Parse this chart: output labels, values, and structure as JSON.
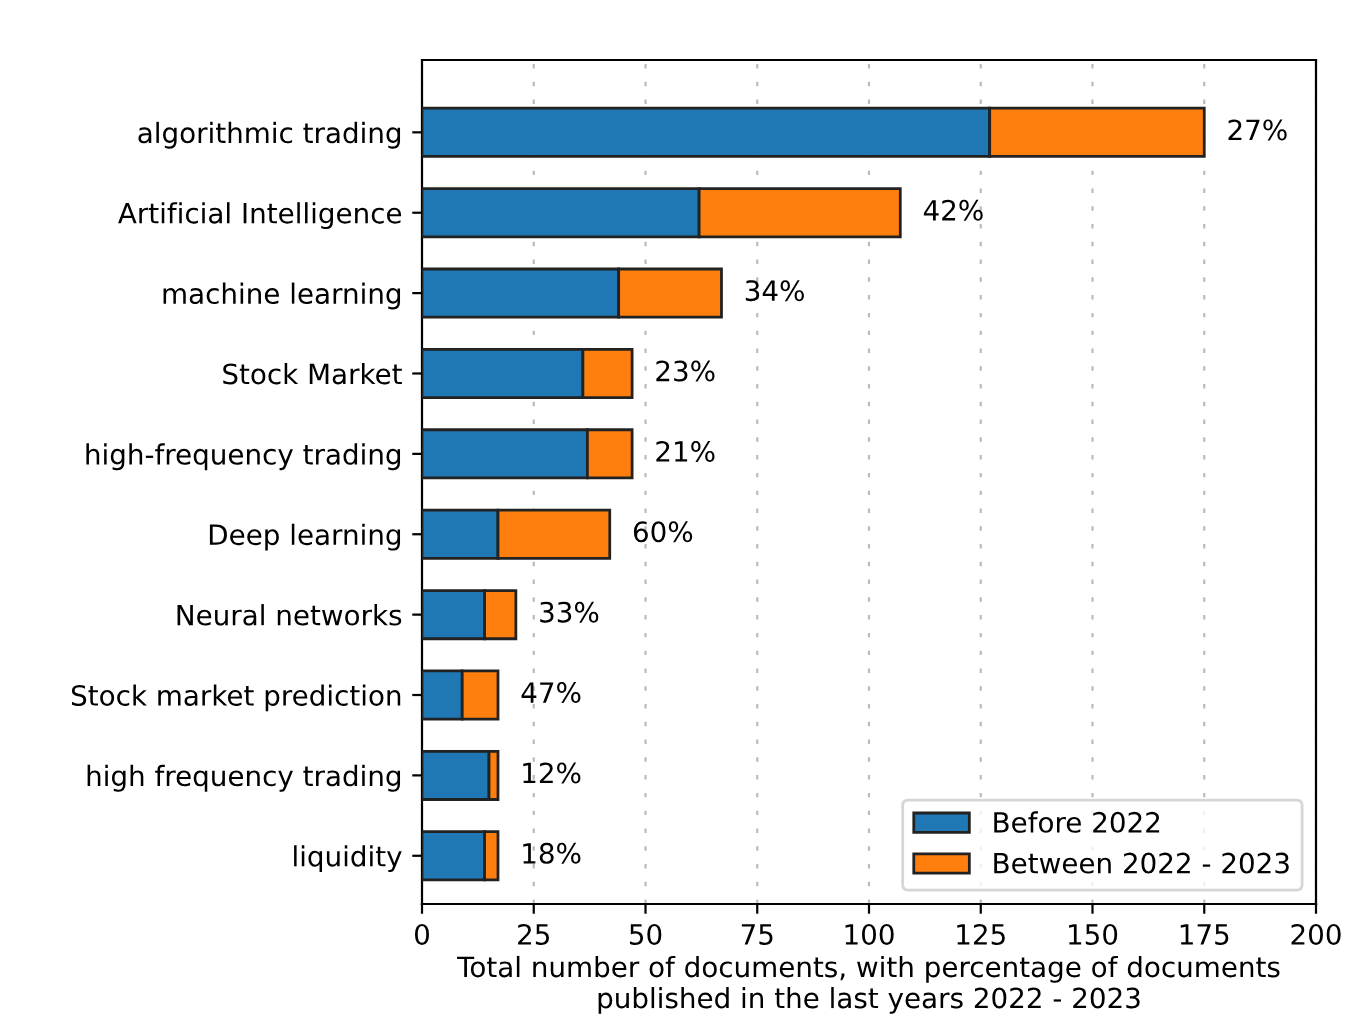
{
  "chart_data": {
    "type": "bar",
    "orientation": "horizontal",
    "stacked": true,
    "categories": [
      "algorithmic trading",
      "Artificial Intelligence",
      "machine learning",
      "Stock Market",
      "high-frequency trading",
      "Deep learning",
      "Neural networks",
      "Stock market prediction",
      "high frequency trading",
      "liquidity"
    ],
    "series": [
      {
        "name": "Before 2022",
        "color": "#1f77b4",
        "values": [
          127,
          62,
          44,
          36,
          37,
          17,
          14,
          9,
          15,
          14
        ]
      },
      {
        "name": "Between 2022 - 2023",
        "color": "#ff7f0e",
        "values": [
          48,
          45,
          23,
          11,
          10,
          25,
          7,
          8,
          2,
          3
        ]
      }
    ],
    "annotations": [
      {
        "text": "27%",
        "x": 175,
        "y": "algorithmic trading"
      },
      {
        "text": "42%",
        "x": 107,
        "y": "Artificial Intelligence"
      },
      {
        "text": "34%",
        "x": 67,
        "y": "machine learning"
      },
      {
        "text": "23%",
        "x": 47,
        "y": "Stock Market"
      },
      {
        "text": "21%",
        "x": 47,
        "y": "high-frequency trading"
      },
      {
        "text": "60%",
        "x": 42,
        "y": "Deep learning"
      },
      {
        "text": "33%",
        "x": 21,
        "y": "Neural networks"
      },
      {
        "text": "47%",
        "x": 17,
        "y": "Stock market prediction"
      },
      {
        "text": "12%",
        "x": 17,
        "y": "high frequency trading"
      },
      {
        "text": "18%",
        "x": 17,
        "y": "liquidity"
      }
    ],
    "xlabel": "Total number of documents, with percentage of documents\npublished in the last years 2022 - 2023",
    "xlim": [
      0,
      200
    ],
    "xticks": [
      0,
      25,
      50,
      75,
      100,
      125,
      150,
      175,
      200
    ],
    "grid": "x",
    "legend": "bottom right"
  }
}
